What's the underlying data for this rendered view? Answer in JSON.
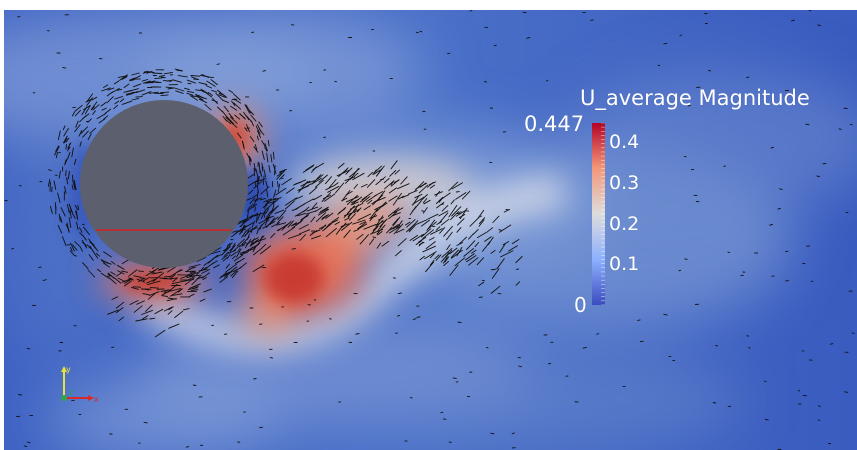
{
  "scalar_bar": {
    "title": "U_average Magnitude",
    "range_max_label": "0.447",
    "range_min_label": "0",
    "ticks": [
      "0.4",
      "0.3",
      "0.2",
      "0.1"
    ],
    "tick_values": [
      0.4,
      0.3,
      0.2,
      0.1
    ],
    "range": [
      0,
      0.447
    ]
  },
  "orientation_axes": {
    "x_label": "x",
    "y_label": "y",
    "z_label": "z",
    "x_color": "#d92a2a",
    "y_color": "#e8e23a",
    "z_color": "#2aa84a"
  },
  "colors": {
    "background_low": "#3a5bbf",
    "mid": "#dfe3ee",
    "high": "#b40426",
    "cylinder": "#5c5f6e",
    "cylinder_line": "#d42020",
    "glyph": "#111111"
  },
  "icons": {
    "cylinder": "cylinder-obstacle-icon",
    "axes": "orientation-axes-icon"
  }
}
